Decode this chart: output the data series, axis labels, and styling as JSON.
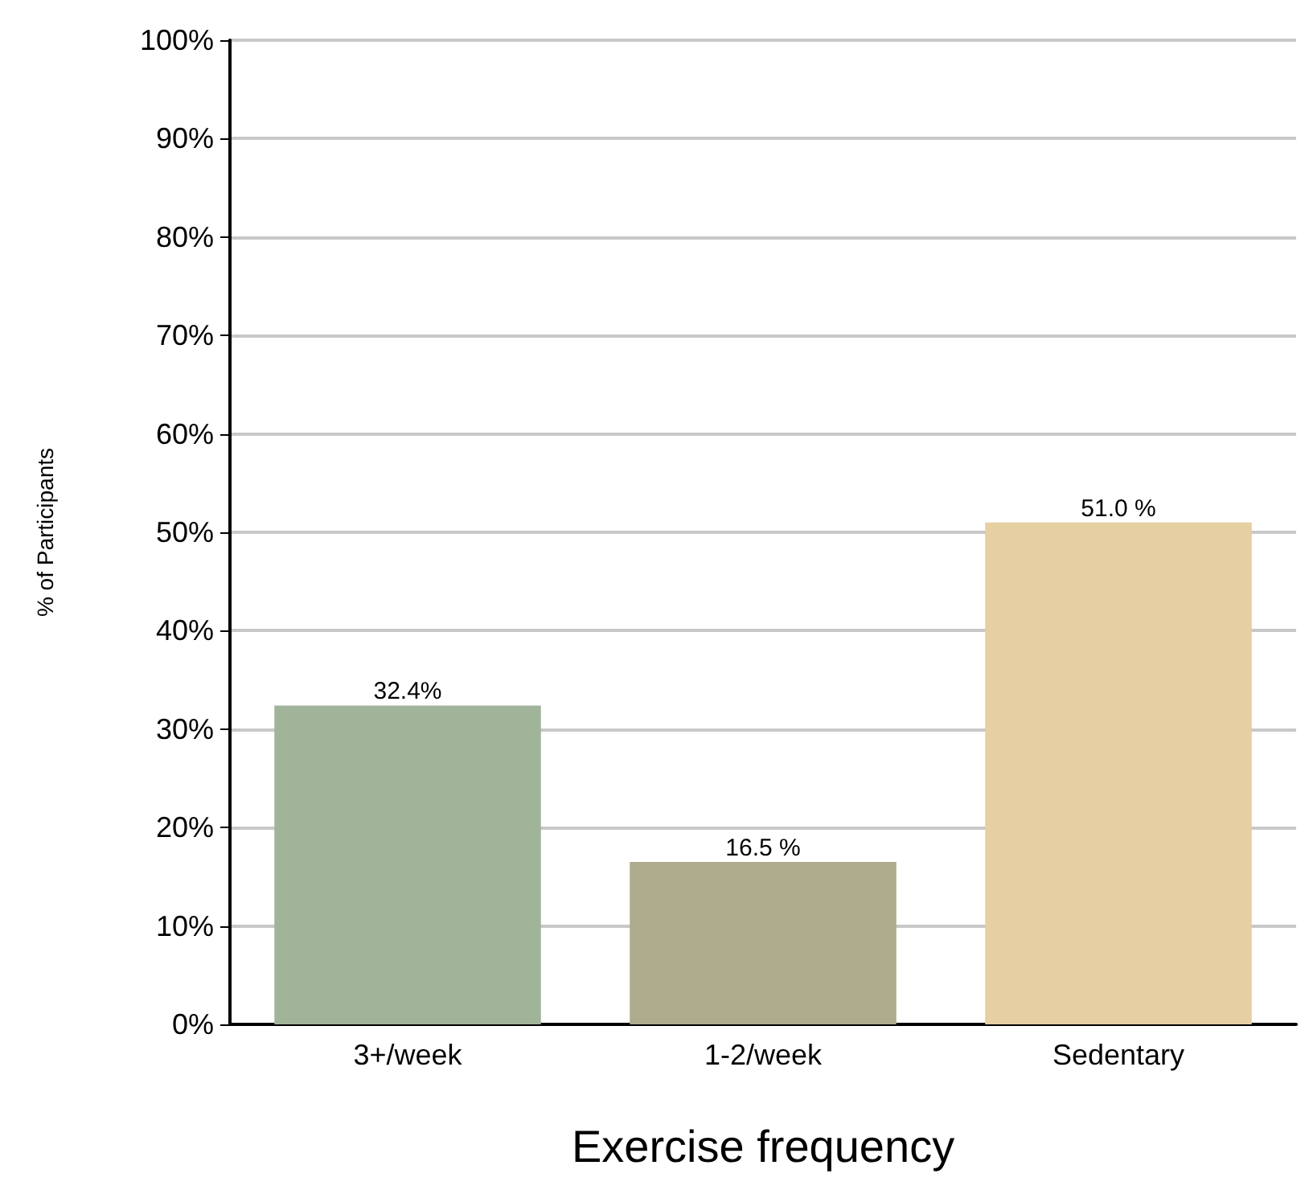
{
  "chart_data": {
    "type": "bar",
    "xlabel": "Exercise frequency",
    "ylabel": "% of Participants",
    "categories": [
      "3+/week",
      "1-2/week",
      "Sedentary"
    ],
    "values": [
      32.4,
      16.5,
      51.0
    ],
    "colors": [
      "#a0b49a",
      "#aeaa8c",
      "#e6cfa2"
    ],
    "value_labels": [
      "32.4%",
      "16.5 %",
      "51.0 %"
    ],
    "ylim": [
      0,
      100
    ],
    "yticks": [
      {
        "value": 0,
        "label": "0%"
      },
      {
        "value": 10,
        "label": "10%"
      },
      {
        "value": 20,
        "label": "20%"
      },
      {
        "value": 30,
        "label": "30%"
      },
      {
        "value": 40,
        "label": "40%"
      },
      {
        "value": 50,
        "label": "50%"
      },
      {
        "value": 60,
        "label": "60%"
      },
      {
        "value": 70,
        "label": "70%"
      },
      {
        "value": 80,
        "label": "80%"
      },
      {
        "value": 90,
        "label": "90%"
      },
      {
        "value": 100,
        "label": "100%"
      }
    ],
    "grid": "y"
  }
}
